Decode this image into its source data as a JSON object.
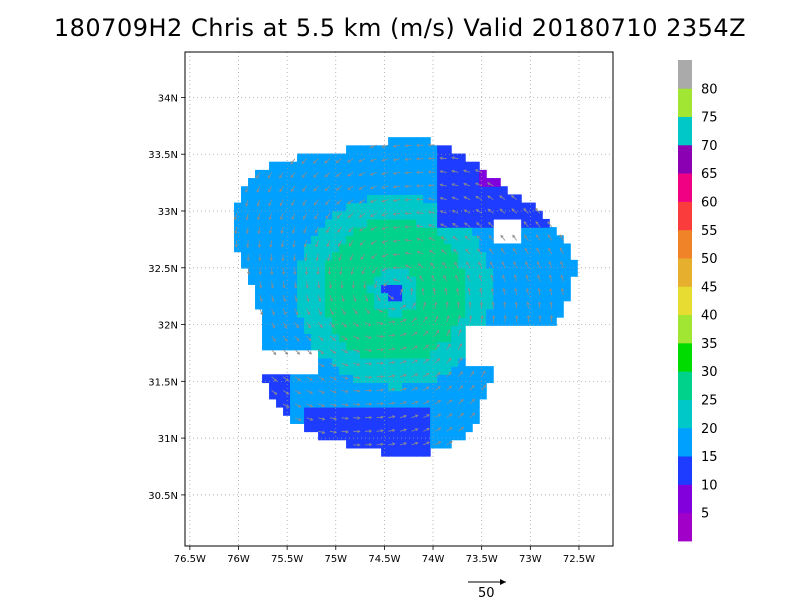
{
  "chart_data": {
    "type": "heatmap",
    "title": "180709H2 Chris at 5.5 km (m/s) Valid 20180710 2354Z",
    "x_ticks": [
      "76.5W",
      "76W",
      "75.5W",
      "75W",
      "74.5W",
      "74W",
      "73.5W",
      "73W",
      "72.5W"
    ],
    "y_ticks": [
      "30.5N",
      "31N",
      "31.5N",
      "32N",
      "32.5N",
      "33N",
      "33.5N",
      "34N"
    ],
    "xlim": [
      -76.55,
      -72.15
    ],
    "ylim": [
      30.05,
      34.4
    ],
    "grid": true,
    "storm_center": {
      "lon": -74.4,
      "lat": 32.3
    },
    "field_max": 30,
    "reference_vector": {
      "label": "50",
      "magnitude": 50
    },
    "colorbar": {
      "labels": [
        "5",
        "10",
        "15",
        "20",
        "25",
        "30",
        "35",
        "40",
        "45",
        "50",
        "55",
        "60",
        "65",
        "70",
        "75",
        "80"
      ],
      "colors": [
        "#a000c8",
        "#8200dc",
        "#1e3cff",
        "#00a0ff",
        "#00c8c8",
        "#00d28c",
        "#00dc00",
        "#a0e632",
        "#e6dc32",
        "#e6af2d",
        "#f08228",
        "#fa3c3c",
        "#f00082",
        "#8c00b4",
        "#00c8c8",
        "#a0e632",
        "#aaaaaa"
      ]
    }
  }
}
